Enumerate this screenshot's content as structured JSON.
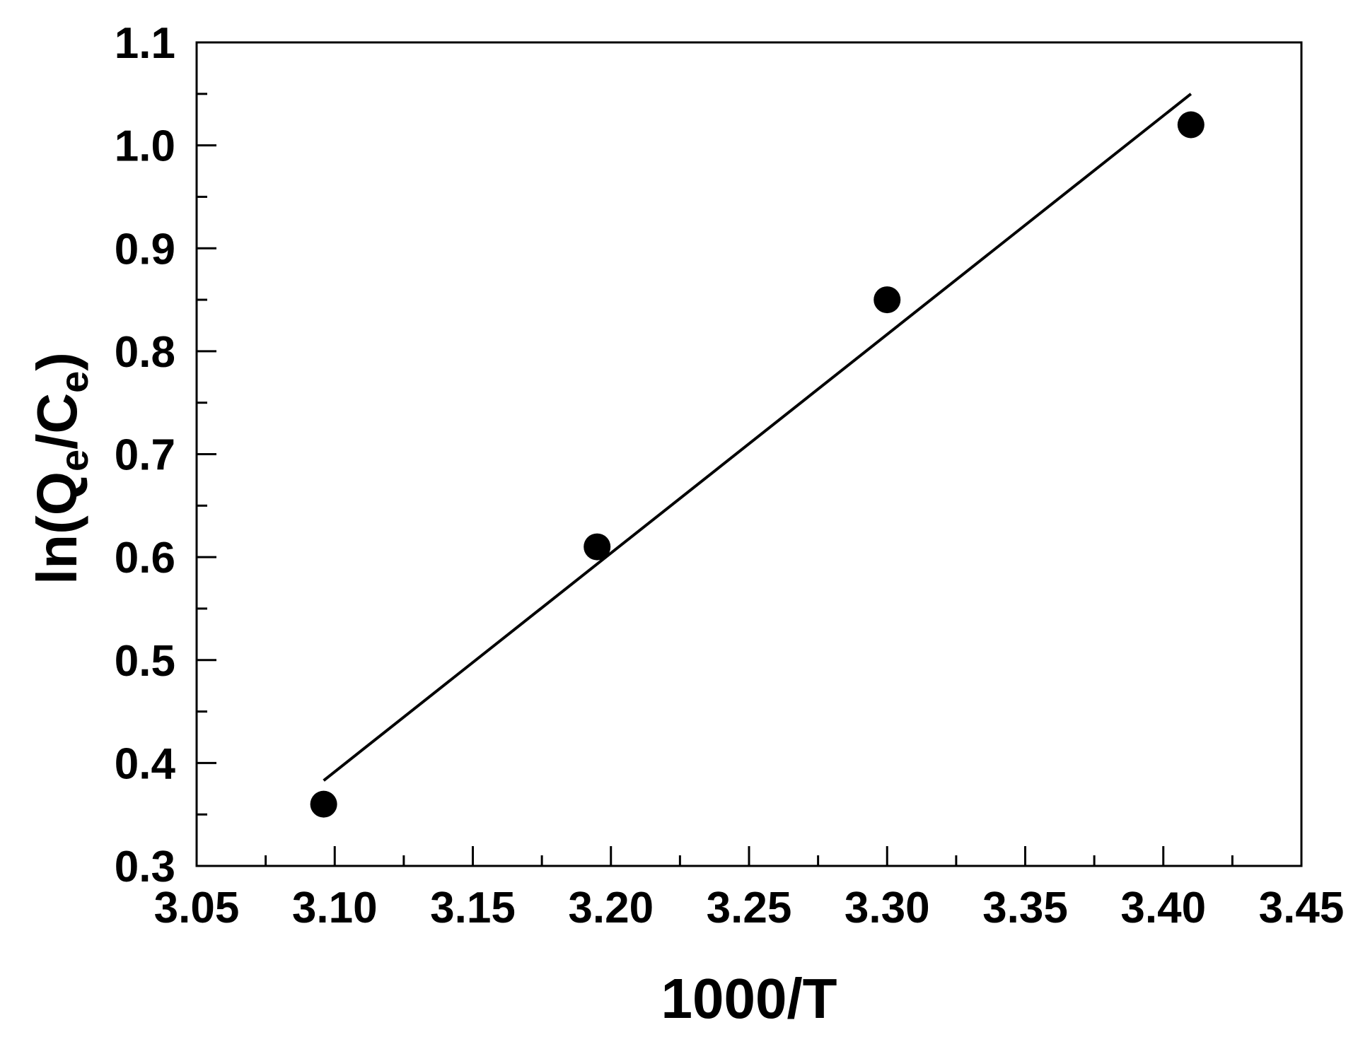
{
  "chart_data": {
    "type": "scatter",
    "title": "",
    "xlabel": "1000/T",
    "ylabel": {
      "prefix": "ln(Q",
      "sub1": "e",
      "mid": "/C",
      "sub2": "e",
      "suffix": ")"
    },
    "xlim": [
      3.05,
      3.45
    ],
    "ylim": [
      0.3,
      1.1
    ],
    "x_ticks": [
      "3.05",
      "3.10",
      "3.15",
      "3.20",
      "3.25",
      "3.30",
      "3.35",
      "3.40",
      "3.45"
    ],
    "y_ticks": [
      "0.3",
      "0.4",
      "0.5",
      "0.6",
      "0.7",
      "0.8",
      "0.9",
      "1.0",
      "1.1"
    ],
    "grid": false,
    "points": [
      {
        "x": 3.096,
        "y": 0.36
      },
      {
        "x": 3.195,
        "y": 0.61
      },
      {
        "x": 3.3,
        "y": 0.85
      },
      {
        "x": 3.41,
        "y": 1.02
      }
    ],
    "fit_line": [
      {
        "x": 3.096,
        "y": 0.383
      },
      {
        "x": 3.41,
        "y": 1.05
      }
    ],
    "colors": {
      "points": "#000000",
      "line": "#000000",
      "axes": "#000000"
    }
  }
}
